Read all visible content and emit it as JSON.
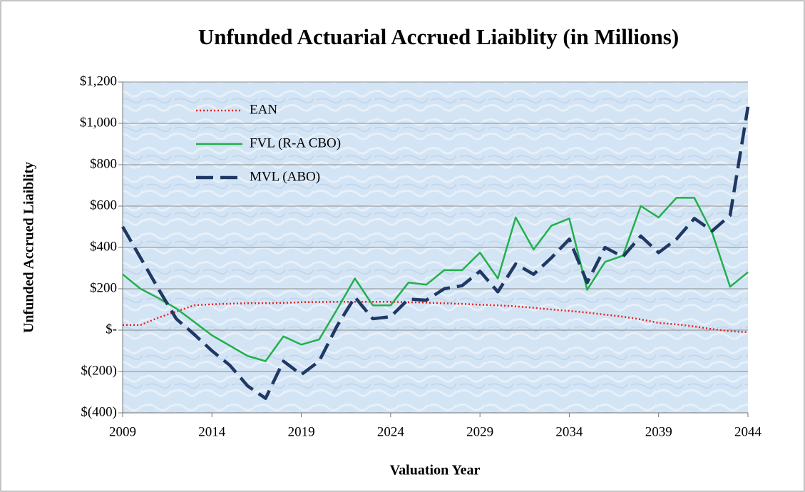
{
  "chart_data": {
    "type": "line",
    "title": "Unfunded Actuarial Accrued Liaiblity (in Millions)",
    "x_label": "Valuation Year",
    "y_label": "Unfunded Accrued Liaiblity",
    "x": [
      2009,
      2010,
      2011,
      2012,
      2013,
      2014,
      2015,
      2016,
      2017,
      2018,
      2019,
      2020,
      2021,
      2022,
      2023,
      2024,
      2025,
      2026,
      2027,
      2028,
      2029,
      2030,
      2031,
      2032,
      2033,
      2034,
      2035,
      2036,
      2037,
      2038,
      2039,
      2040,
      2041,
      2042,
      2043,
      2044
    ],
    "series": [
      {
        "name": "EAN",
        "color": "#e8231f",
        "line_style": "dotted",
        "values": [
          25,
          25,
          60,
          90,
          120,
          125,
          128,
          130,
          130,
          132,
          135,
          136,
          137,
          137,
          137,
          137,
          135,
          133,
          130,
          127,
          123,
          120,
          115,
          108,
          100,
          93,
          85,
          75,
          65,
          52,
          35,
          28,
          18,
          5,
          -5,
          -10
        ]
      },
      {
        "name": "FVL (R-A CBO)",
        "color": "#22b04b",
        "line_style": "solid",
        "values": [
          270,
          200,
          155,
          105,
          40,
          -25,
          -75,
          -125,
          -150,
          -30,
          -70,
          -45,
          100,
          250,
          120,
          120,
          230,
          220,
          290,
          290,
          375,
          250,
          545,
          390,
          505,
          540,
          195,
          330,
          360,
          600,
          545,
          640,
          640,
          470,
          210,
          280
        ]
      },
      {
        "name": "MVL (ABO)",
        "color": "#1f3864",
        "line_style": "dashed",
        "values": [
          500,
          350,
          200,
          55,
          -20,
          -100,
          -170,
          -270,
          -330,
          -150,
          -215,
          -150,
          20,
          160,
          55,
          65,
          150,
          145,
          200,
          215,
          285,
          185,
          320,
          270,
          350,
          440,
          230,
          400,
          355,
          455,
          375,
          440,
          540,
          480,
          555,
          1080
        ]
      }
    ],
    "xlim": [
      2009,
      2044
    ],
    "xticks": [
      2009,
      2014,
      2019,
      2024,
      2029,
      2034,
      2039,
      2044
    ],
    "ylim": [
      -400,
      1200
    ],
    "yticks": [
      {
        "value": -400,
        "label": "$(400)"
      },
      {
        "value": -200,
        "label": "$(200)"
      },
      {
        "value": 0,
        "label": "$-"
      },
      {
        "value": 200,
        "label": "$200"
      },
      {
        "value": 400,
        "label": "$400"
      },
      {
        "value": 600,
        "label": "$600"
      },
      {
        "value": 800,
        "label": "$800"
      },
      {
        "value": 1000,
        "label": "$1,000"
      },
      {
        "value": 1200,
        "label": "$1,200"
      }
    ],
    "grid": true,
    "legend": "upper-left"
  }
}
